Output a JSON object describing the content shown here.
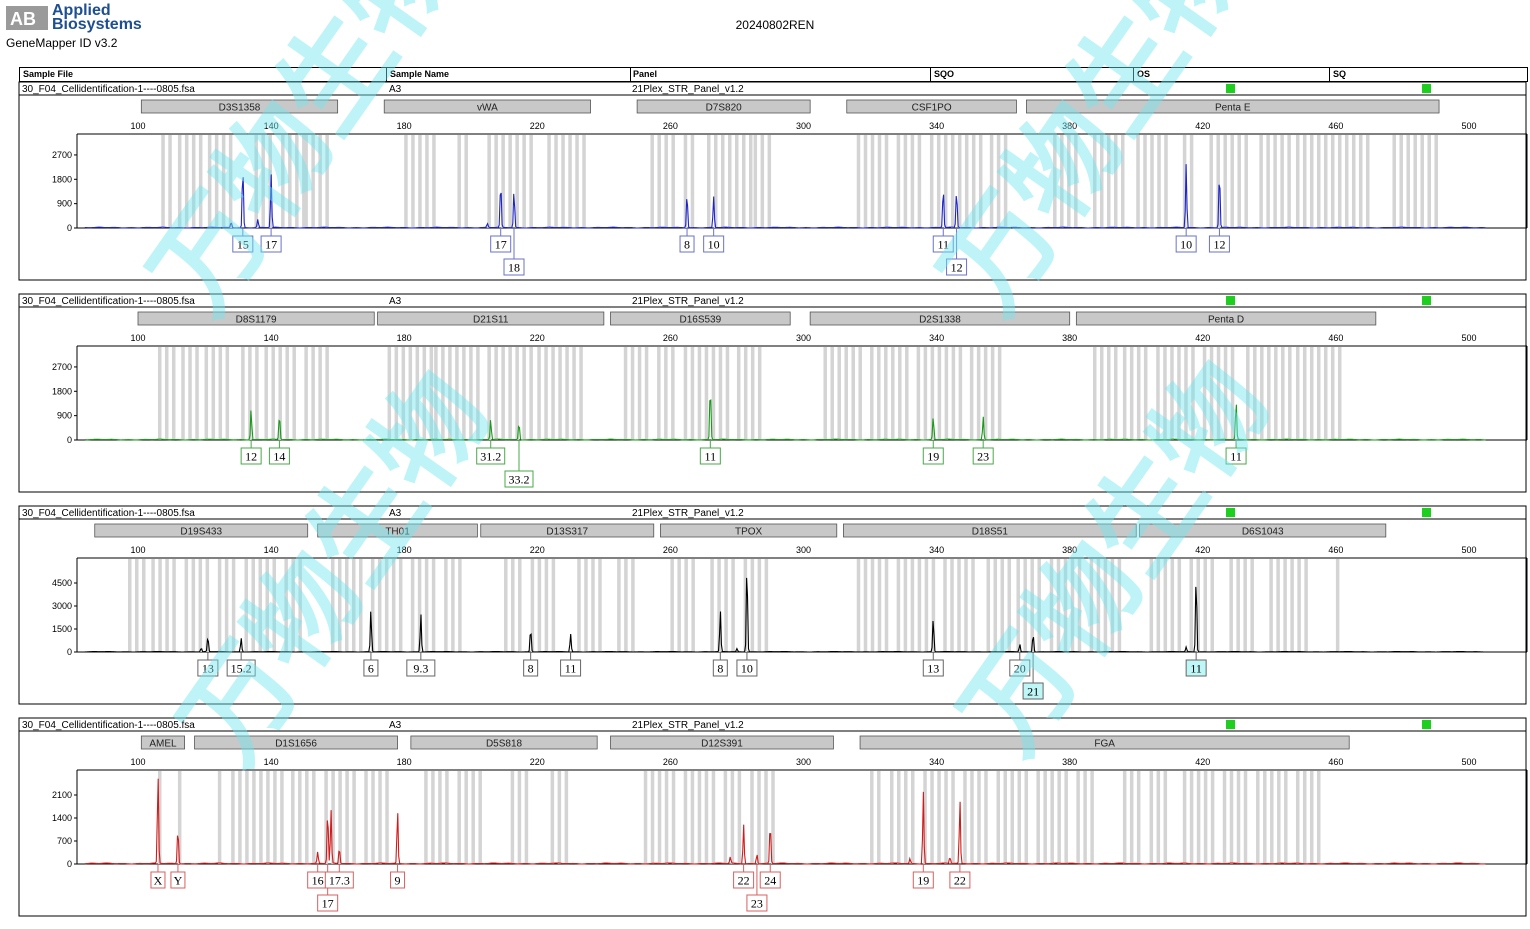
{
  "header": {
    "brand_line1": "Applied",
    "brand_line2": "Biosystems",
    "brand_logo": "AB",
    "app_title": "GeneMapper ID v3.2",
    "project_title": "20240802REN"
  },
  "columns": [
    "Sample File",
    "Sample Name",
    "Panel",
    "SQO",
    "OS",
    "SQ"
  ],
  "watermark": "万物生物",
  "panels": [
    {
      "sample_file": "30_F04_Cellidentification-1----0805.fsa",
      "sample_name": "A3",
      "panel": "21Plex_STR_Panel_v1.2",
      "color": "#1f24c8",
      "label_color": "#6a73c8",
      "y_ticks": [
        0,
        900,
        1800,
        2700
      ],
      "y_max": 3400,
      "markers": [
        {
          "name": "D3S1358",
          "start": 101,
          "end": 160
        },
        {
          "name": "vWA",
          "start": 174,
          "end": 236
        },
        {
          "name": "D7S820",
          "start": 250,
          "end": 302
        },
        {
          "name": "CSF1PO",
          "start": 313,
          "end": 364
        },
        {
          "name": "Penta E",
          "start": 367,
          "end": 491
        }
      ],
      "bins": [
        [
          107,
          110
        ],
        [
          112,
          120
        ],
        [
          121,
          128
        ],
        [
          135,
          141
        ],
        [
          143,
          150
        ],
        [
          150,
          158
        ],
        [
          180,
          190
        ],
        [
          196,
          200
        ],
        [
          205,
          218
        ],
        [
          223,
          234
        ],
        [
          254,
          262
        ],
        [
          264,
          268
        ],
        [
          271,
          284
        ],
        [
          285,
          290
        ],
        [
          316,
          325
        ],
        [
          328,
          336
        ],
        [
          338,
          354
        ],
        [
          356,
          362
        ],
        [
          375,
          382
        ],
        [
          387,
          396
        ],
        [
          400,
          410
        ],
        [
          414,
          418
        ],
        [
          422,
          434
        ],
        [
          437,
          446
        ],
        [
          448,
          470
        ],
        [
          477,
          490
        ]
      ],
      "peaks": [
        {
          "x": 131.5,
          "h": 2300
        },
        {
          "x": 140,
          "h": 2000
        },
        {
          "x": 128,
          "h": 200
        },
        {
          "x": 136,
          "h": 300
        },
        {
          "x": 209,
          "h": 1700
        },
        {
          "x": 213,
          "h": 1400
        },
        {
          "x": 205,
          "h": 150
        },
        {
          "x": 265,
          "h": 1300
        },
        {
          "x": 273,
          "h": 1150
        },
        {
          "x": 342,
          "h": 1500
        },
        {
          "x": 346,
          "h": 1400
        },
        {
          "x": 415,
          "h": 2350
        },
        {
          "x": 425,
          "h": 2100
        }
      ],
      "alleles": [
        {
          "label": "15",
          "x": 131.5,
          "row": 0
        },
        {
          "label": "17",
          "x": 140,
          "row": 0
        },
        {
          "label": "17",
          "x": 209,
          "row": 0
        },
        {
          "label": "18",
          "x": 213,
          "row": 1
        },
        {
          "label": "8",
          "x": 265,
          "row": 0
        },
        {
          "label": "10",
          "x": 273,
          "row": 0
        },
        {
          "label": "11",
          "x": 342,
          "row": 0
        },
        {
          "label": "12",
          "x": 346,
          "row": 1
        },
        {
          "label": "10",
          "x": 415,
          "row": 0
        },
        {
          "label": "12",
          "x": 425,
          "row": 0
        }
      ]
    },
    {
      "sample_file": "30_F04_Cellidentification-1----0805.fsa",
      "sample_name": "A3",
      "panel": "21Plex_STR_Panel_v1.2",
      "color": "#1a9a1a",
      "label_color": "#4aa84a",
      "y_ticks": [
        0,
        900,
        1800,
        2700
      ],
      "y_max": 3400,
      "markers": [
        {
          "name": "D8S1179",
          "start": 100,
          "end": 171
        },
        {
          "name": "D21S11",
          "start": 172,
          "end": 240
        },
        {
          "name": "D16S539",
          "start": 242,
          "end": 296
        },
        {
          "name": "D2S1338",
          "start": 302,
          "end": 380
        },
        {
          "name": "Penta D",
          "start": 382,
          "end": 472
        }
      ],
      "bins": [
        [
          106,
          111
        ],
        [
          113,
          118
        ],
        [
          120,
          128
        ],
        [
          131,
          136
        ],
        [
          138,
          148
        ],
        [
          150,
          158
        ],
        [
          175,
          188
        ],
        [
          189,
          202
        ],
        [
          205,
          218
        ],
        [
          220,
          234
        ],
        [
          246,
          254
        ],
        [
          256,
          262
        ],
        [
          264,
          278
        ],
        [
          280,
          288
        ],
        [
          306,
          318
        ],
        [
          320,
          332
        ],
        [
          334,
          348
        ],
        [
          350,
          360
        ],
        [
          387,
          394
        ],
        [
          396,
          404
        ],
        [
          406,
          418
        ],
        [
          420,
          430
        ],
        [
          433,
          446
        ],
        [
          448,
          462
        ]
      ],
      "peaks": [
        {
          "x": 134,
          "h": 1150
        },
        {
          "x": 142.5,
          "h": 950
        },
        {
          "x": 206,
          "h": 750
        },
        {
          "x": 214.5,
          "h": 650
        },
        {
          "x": 272,
          "h": 2000
        },
        {
          "x": 339,
          "h": 850
        },
        {
          "x": 354,
          "h": 850
        },
        {
          "x": 430,
          "h": 1450
        }
      ],
      "alleles": [
        {
          "label": "12",
          "x": 134,
          "row": 0
        },
        {
          "label": "14",
          "x": 142.5,
          "row": 0
        },
        {
          "label": "31.2",
          "x": 206,
          "row": 0
        },
        {
          "label": "33.2",
          "x": 214.5,
          "row": 1
        },
        {
          "label": "11",
          "x": 272,
          "row": 0
        },
        {
          "label": "19",
          "x": 339,
          "row": 0
        },
        {
          "label": "23",
          "x": 354,
          "row": 0
        },
        {
          "label": "11",
          "x": 430,
          "row": 0
        }
      ]
    },
    {
      "sample_file": "30_F04_Cellidentification-1----0805.fsa",
      "sample_name": "A3",
      "panel": "21Plex_STR_Panel_v1.2",
      "color": "#000000",
      "label_color": "#666666",
      "y_ticks": [
        0,
        1500,
        3000,
        4500
      ],
      "y_max": 6000,
      "markers": [
        {
          "name": "D19S433",
          "start": 87,
          "end": 151
        },
        {
          "name": "TH01",
          "start": 154,
          "end": 202
        },
        {
          "name": "D13S317",
          "start": 203,
          "end": 255
        },
        {
          "name": "TPOX",
          "start": 257,
          "end": 310
        },
        {
          "name": "D18S51",
          "start": 312,
          "end": 400
        },
        {
          "name": "D6S1043",
          "start": 401,
          "end": 475
        }
      ],
      "bins": [
        [
          97,
          102
        ],
        [
          104,
          112
        ],
        [
          114,
          122
        ],
        [
          124,
          130
        ],
        [
          132,
          142
        ],
        [
          144,
          150
        ],
        [
          158,
          168
        ],
        [
          170,
          180
        ],
        [
          182,
          190
        ],
        [
          192,
          198
        ],
        [
          210,
          216
        ],
        [
          218,
          226
        ],
        [
          232,
          240
        ],
        [
          244,
          250
        ],
        [
          260,
          268
        ],
        [
          272,
          280
        ],
        [
          282,
          290
        ],
        [
          316,
          326
        ],
        [
          328,
          340
        ],
        [
          342,
          352
        ],
        [
          355,
          362
        ],
        [
          364,
          372
        ],
        [
          374,
          384
        ],
        [
          386,
          396
        ],
        [
          404,
          414
        ],
        [
          416,
          424
        ],
        [
          428,
          436
        ],
        [
          440,
          452
        ],
        [
          460,
          462
        ]
      ],
      "peaks": [
        {
          "x": 121,
          "h": 1000
        },
        {
          "x": 131,
          "h": 900
        },
        {
          "x": 119,
          "h": 250
        },
        {
          "x": 170,
          "h": 2750
        },
        {
          "x": 185,
          "h": 2500
        },
        {
          "x": 218,
          "h": 1550
        },
        {
          "x": 230,
          "h": 1200
        },
        {
          "x": 275,
          "h": 2700
        },
        {
          "x": 283,
          "h": 5900
        },
        {
          "x": 280,
          "h": 200
        },
        {
          "x": 339,
          "h": 2200
        },
        {
          "x": 365,
          "h": 500
        },
        {
          "x": 369,
          "h": 1200
        },
        {
          "x": 418,
          "h": 5000
        },
        {
          "x": 415,
          "h": 300
        }
      ],
      "alleles": [
        {
          "label": "13",
          "x": 121,
          "row": 0
        },
        {
          "label": "15.2",
          "x": 131,
          "row": 0
        },
        {
          "label": "6",
          "x": 170,
          "row": 0
        },
        {
          "label": "9.3",
          "x": 185,
          "row": 0
        },
        {
          "label": "8",
          "x": 218,
          "row": 0
        },
        {
          "label": "11",
          "x": 230,
          "row": 0
        },
        {
          "label": "8",
          "x": 275,
          "row": 0
        },
        {
          "label": "10",
          "x": 283,
          "row": 0
        },
        {
          "label": "13",
          "x": 339,
          "row": 0
        },
        {
          "label": "20",
          "x": 365,
          "row": 0
        },
        {
          "label": "21",
          "x": 369,
          "row": 1,
          "highlight": true
        },
        {
          "label": "11",
          "x": 418,
          "row": 0,
          "highlight": true
        }
      ]
    },
    {
      "sample_file": "30_F04_Cellidentification-1----0805.fsa",
      "sample_name": "A3",
      "panel": "21Plex_STR_Panel_v1.2",
      "color": "#d01c1c",
      "label_color": "#d86060",
      "y_ticks": [
        0,
        700,
        1400,
        2100
      ],
      "y_max": 2800,
      "markers": [
        {
          "name": "AMEL",
          "start": 101,
          "end": 114
        },
        {
          "name": "D1S1656",
          "start": 117,
          "end": 178
        },
        {
          "name": "D5S818",
          "start": 182,
          "end": 238
        },
        {
          "name": "D12S391",
          "start": 242,
          "end": 309
        },
        {
          "name": "FGA",
          "start": 317,
          "end": 464
        }
      ],
      "bins": [
        [
          106,
          108
        ],
        [
          112,
          114
        ],
        [
          124,
          126
        ],
        [
          128,
          144
        ],
        [
          146,
          154
        ],
        [
          156,
          166
        ],
        [
          168,
          176
        ],
        [
          186,
          194
        ],
        [
          196,
          204
        ],
        [
          212,
          218
        ],
        [
          224,
          230
        ],
        [
          252,
          262
        ],
        [
          264,
          274
        ],
        [
          276,
          282
        ],
        [
          284,
          292
        ],
        [
          320,
          324
        ],
        [
          326,
          334
        ],
        [
          336,
          346
        ],
        [
          348,
          356
        ],
        [
          358,
          368
        ],
        [
          370,
          380
        ],
        [
          382,
          388
        ],
        [
          396,
          402
        ],
        [
          404,
          410
        ],
        [
          414,
          424
        ],
        [
          426,
          434
        ],
        [
          436,
          446
        ],
        [
          448,
          456
        ]
      ],
      "peaks": [
        {
          "x": 106,
          "h": 2750
        },
        {
          "x": 112,
          "h": 1100
        },
        {
          "x": 154,
          "h": 350
        },
        {
          "x": 157,
          "h": 1650
        },
        {
          "x": 158,
          "h": 1650
        },
        {
          "x": 160.5,
          "h": 500
        },
        {
          "x": 178,
          "h": 1650
        },
        {
          "x": 282,
          "h": 1200
        },
        {
          "x": 286,
          "h": 300
        },
        {
          "x": 290,
          "h": 1250
        },
        {
          "x": 278,
          "h": 200
        },
        {
          "x": 336,
          "h": 2200
        },
        {
          "x": 347,
          "h": 1950
        },
        {
          "x": 332,
          "h": 150
        },
        {
          "x": 344,
          "h": 200
        }
      ],
      "alleles": [
        {
          "label": "X",
          "x": 106,
          "row": 0
        },
        {
          "label": "Y",
          "x": 112,
          "row": 0
        },
        {
          "label": "16",
          "x": 154,
          "row": 0
        },
        {
          "label": "17",
          "x": 157,
          "row": 1
        },
        {
          "label": "17.3",
          "x": 160.5,
          "row": 0
        },
        {
          "label": "9",
          "x": 178,
          "row": 0
        },
        {
          "label": "22",
          "x": 282,
          "row": 0
        },
        {
          "label": "23",
          "x": 286,
          "row": 1
        },
        {
          "label": "24",
          "x": 290,
          "row": 0
        },
        {
          "label": "19",
          "x": 336,
          "row": 0
        },
        {
          "label": "22",
          "x": 347,
          "row": 0
        }
      ]
    }
  ],
  "chart_data": {
    "type": "line",
    "x_ticks": [
      100,
      140,
      180,
      220,
      260,
      300,
      340,
      380,
      420,
      460,
      500
    ],
    "xlim": [
      100,
      500
    ]
  }
}
